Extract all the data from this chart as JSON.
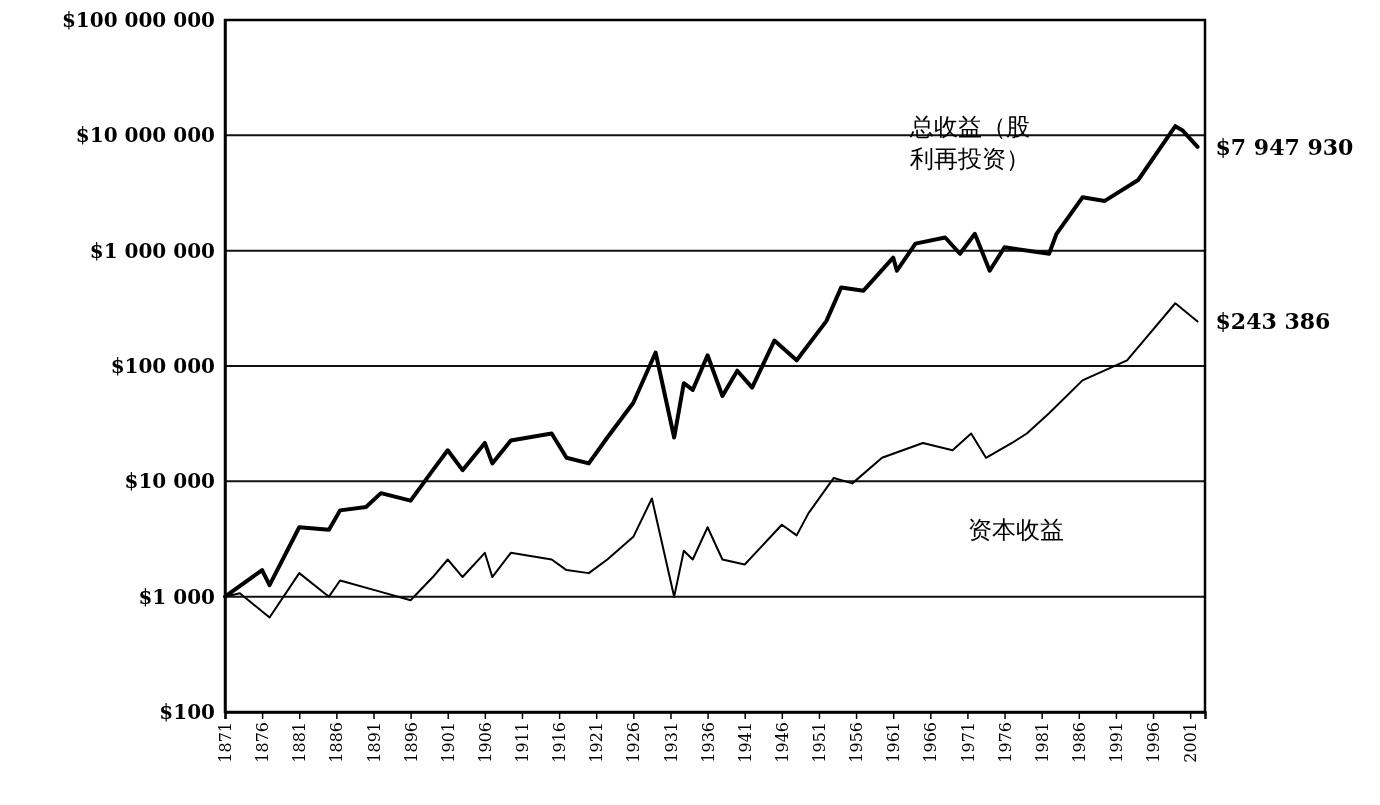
{
  "chart_data": {
    "type": "line",
    "log": "y",
    "grid": "y",
    "legend": false,
    "marker": "none",
    "line_style": "solid",
    "xlim": [
      1871,
      2003
    ],
    "xticks": [
      1871,
      1876,
      1881,
      1886,
      1891,
      1896,
      1901,
      1906,
      1911,
      1916,
      1921,
      1926,
      1931,
      1936,
      1941,
      1946,
      1951,
      1956,
      1961,
      1966,
      1971,
      1976,
      1981,
      1986,
      1991,
      1996,
      2001
    ],
    "ylim": [
      100,
      100000000
    ],
    "yticks": [
      {
        "value": 100,
        "label": "$100"
      },
      {
        "value": 1000,
        "label": "$1 000"
      },
      {
        "value": 10000,
        "label": "$10 000"
      },
      {
        "value": 100000,
        "label": "$100 000"
      },
      {
        "value": 1000000,
        "label": "$1 000 000"
      },
      {
        "value": 10000000,
        "label": "$10 000 000"
      },
      {
        "value": 100000000,
        "label": "$100 000 000"
      }
    ],
    "series": [
      {
        "name": "总收益（股利再投资）",
        "color": "#000000",
        "x": [
          1871,
          1876,
          1877,
          1881,
          1885,
          1886.5,
          1890,
          1892,
          1896,
          1899,
          1901,
          1903,
          1906,
          1907,
          1909.5,
          1915,
          1917,
          1920,
          1922.5,
          1926,
          1929,
          1931.5,
          1932.8,
          1934,
          1936,
          1938,
          1940,
          1942,
          1945,
          1948,
          1952,
          1954,
          1957,
          1961,
          1961.5,
          1964,
          1968,
          1970,
          1972,
          1974,
          1976,
          1982,
          1983,
          1986.5,
          1989.5,
          1994,
          1999,
          2000,
          2002
        ],
        "values": [
          1000,
          1700,
          1260,
          4000,
          3800,
          5600,
          6000,
          7900,
          6800,
          12500,
          18600,
          12500,
          21500,
          14300,
          22600,
          26000,
          16000,
          14300,
          24000,
          48000,
          131000,
          24000,
          71000,
          62000,
          124000,
          55000,
          91000,
          65000,
          166000,
          112000,
          245000,
          480000,
          450000,
          870000,
          670000,
          1150000,
          1300000,
          940000,
          1400000,
          670000,
          1070000,
          940000,
          1400000,
          2900000,
          2700000,
          4100000,
          12000000,
          11000000,
          7947930
        ]
      },
      {
        "name": "资本收益",
        "color": "#000000",
        "x": [
          1871,
          1873,
          1877,
          1881,
          1885,
          1886.5,
          1892,
          1896,
          1899,
          1901,
          1903,
          1906,
          1907,
          1909.5,
          1915,
          1917,
          1920,
          1922.5,
          1926,
          1928.5,
          1931.5,
          1932.8,
          1934,
          1936,
          1938,
          1941,
          1946,
          1948,
          1949.6,
          1953,
          1955.5,
          1959.5,
          1965,
          1969,
          1971.5,
          1973.5,
          1977,
          1979,
          1982,
          1986.5,
          1992.5,
          1999,
          2002
        ],
        "values": [
          1000,
          1070,
          660,
          1600,
          1000,
          1380,
          1100,
          930,
          1480,
          2100,
          1480,
          2400,
          1480,
          2400,
          2100,
          1700,
          1600,
          2100,
          3300,
          7100,
          1000,
          2500,
          2100,
          4000,
          2100,
          1900,
          4200,
          3400,
          5300,
          10700,
          9600,
          16000,
          21500,
          18600,
          26000,
          16000,
          21500,
          26000,
          39000,
          75000,
          112000,
          350000,
          243386
        ]
      }
    ],
    "annotations": [
      {
        "text": "$7 947 930",
        "x": 2002,
        "y": 7947930
      },
      {
        "text": "$243 386",
        "x": 2002,
        "y": 243386
      }
    ]
  }
}
